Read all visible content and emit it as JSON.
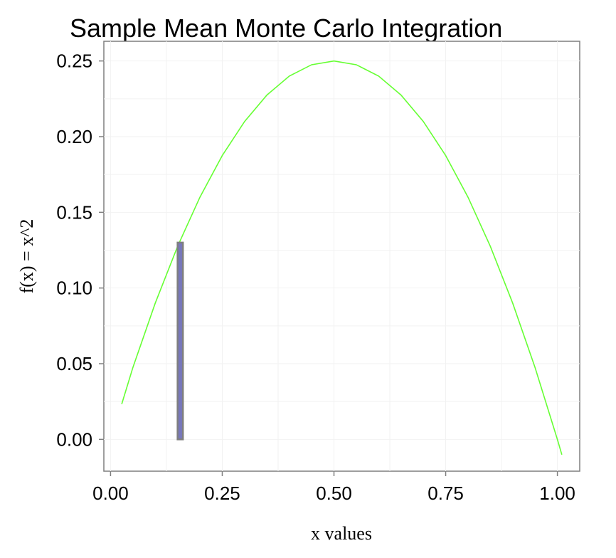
{
  "chart_data": {
    "type": "line",
    "title": "Sample Mean Monte Carlo Integration",
    "xlabel": "x values",
    "ylabel": "f(x) = x^2",
    "xlim": [
      -0.015,
      1.05
    ],
    "ylim": [
      -0.021,
      0.263
    ],
    "x_ticks": [
      0.0,
      0.25,
      0.5,
      0.75,
      1.0
    ],
    "x_tick_labels": [
      "0.00",
      "0.25",
      "0.50",
      "0.75",
      "1.00"
    ],
    "y_ticks": [
      0.0,
      0.05,
      0.1,
      0.15,
      0.2,
      0.25
    ],
    "y_tick_labels": [
      "0.00",
      "0.05",
      "0.10",
      "0.15",
      "0.20",
      "0.25"
    ],
    "grid": true,
    "series": [
      {
        "type": "line",
        "color": "#66ff33",
        "x": [
          0.025,
          0.05,
          0.1,
          0.15,
          0.2,
          0.25,
          0.3,
          0.35,
          0.4,
          0.45,
          0.5,
          0.55,
          0.6,
          0.65,
          0.7,
          0.75,
          0.8,
          0.85,
          0.9,
          0.95,
          1.0,
          1.01
        ],
        "y": [
          0.0233,
          0.0475,
          0.09,
          0.1275,
          0.16,
          0.1875,
          0.21,
          0.2275,
          0.24,
          0.2475,
          0.25,
          0.2475,
          0.24,
          0.2275,
          0.21,
          0.1875,
          0.16,
          0.1275,
          0.09,
          0.0475,
          0.0,
          -0.0101
        ]
      },
      {
        "type": "bar",
        "color": "#7777bb",
        "border_color": "#7f7f7f",
        "x": [
          0.155
        ],
        "y": [
          0.13
        ],
        "x_range": [
          0.15,
          0.162
        ]
      }
    ]
  }
}
